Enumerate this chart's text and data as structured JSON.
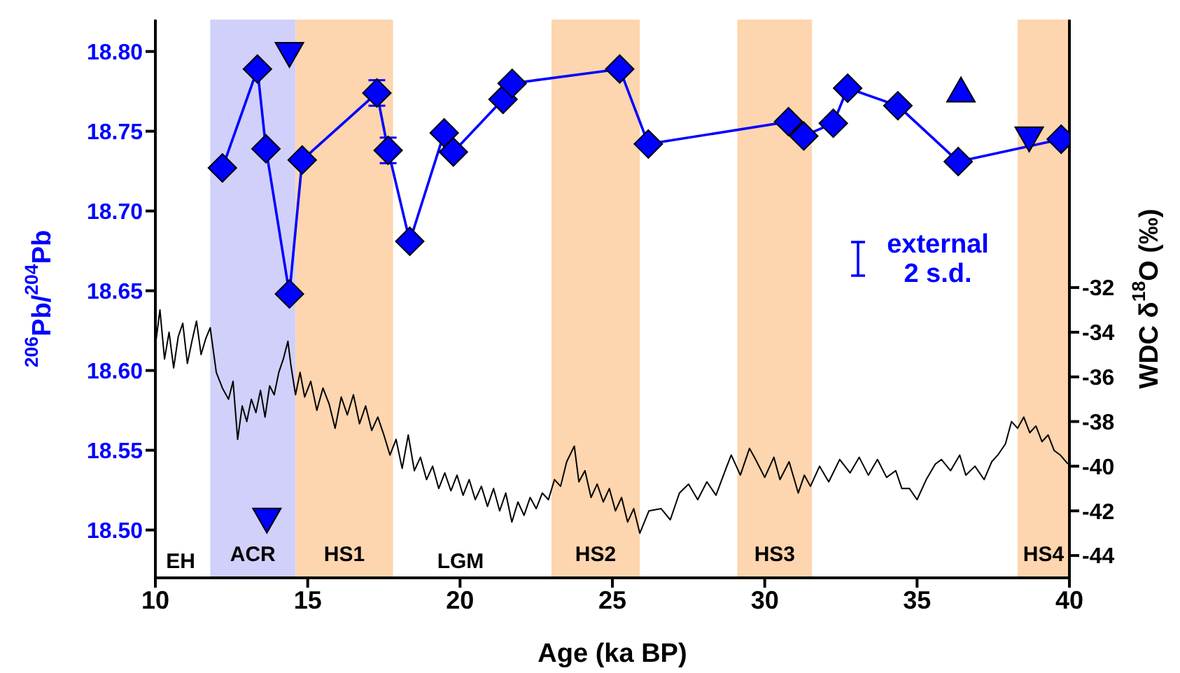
{
  "chart_data": {
    "type": "line",
    "xlabel": "Age (ka BP)",
    "ylabel": "$^{206}$Pb/$^{204}$Pb",
    "y2label": "WDC δ$^{18}$O (‰)",
    "xlim": [
      10,
      40
    ],
    "xticks": [
      10,
      15,
      20,
      25,
      30,
      35,
      40
    ],
    "ylim": [
      18.47,
      18.82
    ],
    "yticks": [
      {
        "value": 18.5,
        "label": "18.50"
      },
      {
        "value": 18.55,
        "label": "18.55"
      },
      {
        "value": 18.6,
        "label": "18.60"
      },
      {
        "value": 18.65,
        "label": "18.65"
      },
      {
        "value": 18.7,
        "label": "18.70"
      },
      {
        "value": 18.75,
        "label": "18.75"
      },
      {
        "value": 18.8,
        "label": "18.80"
      }
    ],
    "y2lim": [
      -45,
      -20
    ],
    "y2ticks": [
      -44,
      -42,
      -40,
      -38,
      -36,
      -34,
      -32
    ],
    "series": [
      {
        "marker": "diamond",
        "color": "#0000ff",
        "x": [
          12.2,
          13.35,
          13.63,
          14.4,
          14.82,
          17.27,
          17.64,
          18.35,
          19.48,
          19.78,
          21.41,
          21.71,
          25.24,
          26.18,
          30.78,
          31.28,
          32.25,
          32.72,
          34.37,
          36.35,
          39.73
        ],
        "values": [
          18.727,
          18.789,
          18.739,
          18.648,
          18.732,
          18.774,
          18.738,
          18.681,
          18.749,
          18.737,
          18.77,
          18.78,
          18.789,
          18.742,
          18.756,
          18.747,
          18.755,
          18.777,
          18.766,
          18.731,
          18.745
        ],
        "errors": [
          null,
          null,
          null,
          null,
          null,
          0.008,
          0.008,
          null,
          null,
          null,
          null,
          null,
          null,
          null,
          null,
          null,
          null,
          null,
          null,
          null,
          null
        ]
      },
      {
        "type": "scatter",
        "marker": "triangle-down",
        "color": "#0000ff",
        "x": [
          14.4,
          13.66,
          38.68
        ],
        "values": [
          18.799,
          18.507,
          18.746
        ]
      },
      {
        "type": "scatter",
        "marker": "triangle",
        "color": "#0000ff",
        "x": [
          36.44
        ],
        "values": [
          18.775
        ]
      },
      {
        "type": "line",
        "axis": "y2",
        "marker": "none",
        "color": "#000000",
        "x": [
          10.0,
          10.15,
          10.3,
          10.45,
          10.6,
          10.75,
          10.9,
          11.05,
          11.2,
          11.35,
          11.5,
          11.65,
          11.8,
          12.0,
          12.2,
          12.4,
          12.55,
          12.7,
          12.85,
          13.0,
          13.15,
          13.3,
          13.45,
          13.6,
          13.75,
          13.9,
          14.05,
          14.2,
          14.35,
          14.45,
          14.6,
          14.75,
          14.9,
          15.1,
          15.3,
          15.5,
          15.7,
          15.9,
          16.1,
          16.3,
          16.5,
          16.7,
          16.9,
          17.1,
          17.3,
          17.5,
          17.7,
          17.9,
          18.1,
          18.3,
          18.5,
          18.7,
          18.9,
          19.1,
          19.3,
          19.5,
          19.7,
          19.9,
          20.1,
          20.3,
          20.5,
          20.7,
          20.9,
          21.1,
          21.3,
          21.5,
          21.7,
          21.9,
          22.1,
          22.3,
          22.5,
          22.7,
          22.9,
          23.1,
          23.3,
          23.5,
          23.75,
          23.9,
          24.1,
          24.3,
          24.5,
          24.7,
          24.9,
          25.1,
          25.3,
          25.5,
          25.7,
          25.9,
          26.2,
          26.6,
          26.9,
          27.2,
          27.5,
          27.8,
          28.1,
          28.4,
          28.7,
          28.9,
          29.2,
          29.5,
          29.7,
          30.0,
          30.3,
          30.5,
          30.8,
          31.1,
          31.3,
          31.5,
          31.8,
          32.1,
          32.46,
          32.8,
          33.1,
          33.4,
          33.7,
          34.0,
          34.3,
          34.5,
          34.75,
          35.0,
          35.3,
          35.6,
          35.8,
          36.1,
          36.4,
          36.6,
          36.9,
          37.2,
          37.45,
          37.65,
          37.9,
          38.1,
          38.3,
          38.5,
          38.7,
          38.9,
          39.1,
          39.3,
          39.5,
          39.7,
          39.95
        ],
        "values": [
          -34.6,
          -33.0,
          -35.2,
          -34.0,
          -35.6,
          -34.2,
          -33.6,
          -35.4,
          -34.4,
          -33.5,
          -35.0,
          -34.3,
          -33.8,
          -35.8,
          -36.5,
          -37.0,
          -36.2,
          -38.8,
          -37.3,
          -38.0,
          -37.0,
          -37.6,
          -36.6,
          -37.8,
          -36.4,
          -36.8,
          -35.8,
          -35.2,
          -34.4,
          -35.5,
          -36.8,
          -35.8,
          -36.9,
          -36.2,
          -37.5,
          -36.5,
          -37.2,
          -38.3,
          -36.9,
          -37.7,
          -36.8,
          -38.1,
          -37.3,
          -38.4,
          -37.8,
          -38.6,
          -39.5,
          -38.8,
          -40.1,
          -38.6,
          -40.2,
          -39.6,
          -40.6,
          -40.0,
          -41.0,
          -40.3,
          -41.1,
          -40.4,
          -41.3,
          -40.6,
          -41.5,
          -40.9,
          -41.8,
          -41.0,
          -42.0,
          -41.2,
          -42.5,
          -41.6,
          -42.2,
          -41.4,
          -41.9,
          -41.2,
          -41.5,
          -40.6,
          -40.9,
          -39.8,
          -39.1,
          -40.7,
          -40.2,
          -41.4,
          -40.8,
          -41.6,
          -41.0,
          -42.0,
          -41.4,
          -42.5,
          -41.9,
          -43.0,
          -42.0,
          -41.9,
          -42.4,
          -41.2,
          -40.8,
          -41.5,
          -40.7,
          -41.3,
          -40.2,
          -39.5,
          -40.4,
          -39.2,
          -39.7,
          -40.5,
          -39.6,
          -40.6,
          -39.8,
          -41.2,
          -40.4,
          -40.9,
          -40.0,
          -40.7,
          -39.7,
          -40.3,
          -39.6,
          -40.4,
          -39.7,
          -40.5,
          -40.2,
          -41.0,
          -41.0,
          -41.5,
          -40.6,
          -39.9,
          -39.7,
          -40.2,
          -39.5,
          -40.4,
          -40.0,
          -40.6,
          -39.8,
          -39.5,
          -39.0,
          -38.0,
          -38.3,
          -37.8,
          -38.5,
          -38.2,
          -38.9,
          -38.6,
          -39.3,
          -39.5,
          -39.9
        ]
      }
    ],
    "bands": [
      {
        "axis": "x",
        "from": 11.8,
        "to": 14.6,
        "label": "ACR",
        "color": "#d0d0fa"
      },
      {
        "axis": "x",
        "from": 14.6,
        "to": 17.8,
        "label": "HS1",
        "color": "#fdd5ae"
      },
      {
        "axis": "x",
        "from": 23.0,
        "to": 25.9,
        "label": "HS2",
        "color": "#fdd5ae"
      },
      {
        "axis": "x",
        "from": 29.1,
        "to": 31.55,
        "label": "HS3",
        "color": "#fdd5ae"
      },
      {
        "axis": "x",
        "from": 38.3,
        "to": 40,
        "label": "HS4",
        "color": "#fdd5ae"
      }
    ],
    "annotations": [
      "EH",
      "LGM",
      "external\n2 s.d."
    ]
  }
}
